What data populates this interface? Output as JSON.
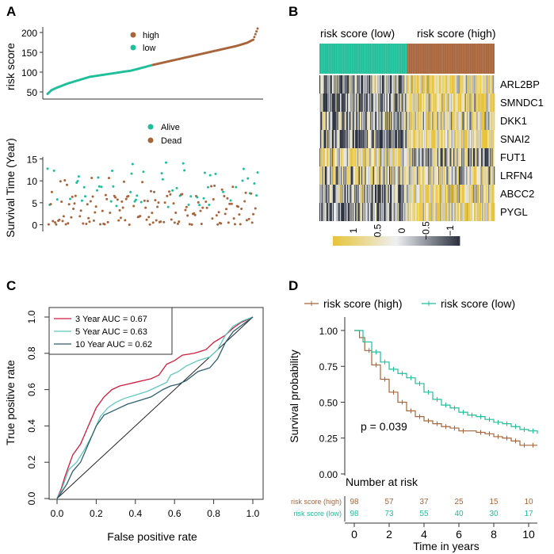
{
  "colors": {
    "high": "#a8643a",
    "low": "#1fbf9a",
    "alive": "#1fbf9a",
    "dead": "#a8643a",
    "roc3": "#d01c3c",
    "roc5": "#5fc8c0",
    "roc10": "#2d5f6e",
    "heat_hi": "#e8c43a",
    "heat_mid": "#eef0f2",
    "heat_lo": "#2d3340"
  },
  "panels": {
    "a": "A",
    "b": "B",
    "c": "C",
    "d": "D"
  },
  "chart_data": [
    {
      "id": "A-top",
      "type": "scatter",
      "ylabel": "risk score",
      "yticks": [
        50,
        100,
        150,
        200
      ],
      "ylim": [
        40,
        210
      ],
      "n": 196,
      "legend": [
        {
          "name": "high"
        },
        {
          "name": "low"
        }
      ],
      "curve": {
        "fraction": [
          0,
          0.02,
          0.05,
          0.1,
          0.2,
          0.3,
          0.4,
          0.5,
          0.6,
          0.7,
          0.8,
          0.9,
          0.95,
          0.98,
          1.0
        ],
        "values": [
          45,
          55,
          62,
          72,
          88,
          96,
          104,
          118,
          130,
          142,
          154,
          166,
          174,
          182,
          210
        ]
      },
      "split_fraction": 0.5
    },
    {
      "id": "A-bottom",
      "type": "scatter",
      "ylabel": "Survival Time (Year)",
      "yticks": [
        0,
        5,
        10,
        15
      ],
      "ylim": [
        -1,
        16
      ],
      "legend": [
        {
          "name": "Alive"
        },
        {
          "name": "Dead"
        }
      ],
      "n": 196
    },
    {
      "id": "B",
      "type": "heatmap",
      "column_groups": [
        "risk score (low)",
        "risk score (high)"
      ],
      "genes": [
        "ARL2BP",
        "SMNDC1",
        "DKK1",
        "SNAI2",
        "FUT1",
        "LRFN4",
        "ABCC2",
        "PYGL"
      ],
      "colorbar_ticks": [
        "1",
        "0.5",
        "0",
        "−0.5",
        "−1"
      ],
      "n_columns": 196
    },
    {
      "id": "C",
      "type": "line",
      "xlabel": "False positive rate",
      "ylabel": "True positive rate",
      "xticks": [
        "0.0",
        "0.2",
        "0.4",
        "0.6",
        "0.8",
        "1.0"
      ],
      "yticks": [
        "0.0",
        "0.2",
        "0.4",
        "0.6",
        "0.8",
        "1.0"
      ],
      "xlim": [
        0,
        1
      ],
      "ylim": [
        0,
        1
      ],
      "legend_position": "top-left",
      "series": [
        {
          "name": "3 Year AUC =  0.67",
          "x": [
            0,
            0.02,
            0.04,
            0.06,
            0.08,
            0.12,
            0.16,
            0.2,
            0.24,
            0.28,
            0.32,
            0.36,
            0.4,
            0.44,
            0.48,
            0.52,
            0.56,
            0.6,
            0.64,
            0.7,
            0.76,
            0.8,
            0.86,
            0.9,
            0.94,
            1.0
          ],
          "y": [
            0,
            0.05,
            0.12,
            0.18,
            0.24,
            0.3,
            0.4,
            0.5,
            0.56,
            0.6,
            0.62,
            0.63,
            0.64,
            0.65,
            0.66,
            0.68,
            0.74,
            0.76,
            0.79,
            0.8,
            0.82,
            0.86,
            0.9,
            0.94,
            0.97,
            1.0
          ]
        },
        {
          "name": "5 Year AUC =  0.63",
          "x": [
            0,
            0.02,
            0.04,
            0.06,
            0.1,
            0.14,
            0.18,
            0.22,
            0.26,
            0.3,
            0.34,
            0.4,
            0.46,
            0.52,
            0.56,
            0.58,
            0.62,
            0.66,
            0.72,
            0.78,
            0.82,
            0.86,
            0.9,
            0.95,
            1.0
          ],
          "y": [
            0,
            0.04,
            0.1,
            0.16,
            0.2,
            0.27,
            0.35,
            0.45,
            0.5,
            0.53,
            0.55,
            0.57,
            0.59,
            0.62,
            0.64,
            0.68,
            0.7,
            0.73,
            0.76,
            0.78,
            0.82,
            0.9,
            0.95,
            0.98,
            1.0
          ]
        },
        {
          "name": "10 Year AUC =  0.62",
          "x": [
            0,
            0.02,
            0.05,
            0.08,
            0.12,
            0.16,
            0.2,
            0.24,
            0.3,
            0.36,
            0.42,
            0.48,
            0.54,
            0.58,
            0.62,
            0.66,
            0.72,
            0.78,
            0.82,
            0.86,
            0.9,
            0.95,
            1.0
          ],
          "y": [
            0,
            0.03,
            0.08,
            0.15,
            0.2,
            0.3,
            0.4,
            0.46,
            0.49,
            0.52,
            0.54,
            0.56,
            0.6,
            0.62,
            0.63,
            0.65,
            0.7,
            0.72,
            0.77,
            0.86,
            0.92,
            0.96,
            1.0
          ]
        }
      ]
    },
    {
      "id": "D",
      "type": "line",
      "xlabel": "Time in years",
      "ylabel": "Survival probability",
      "xticks": [
        "0",
        "2",
        "4",
        "6",
        "8",
        "10"
      ],
      "yticks": [
        "0.00",
        "0.25",
        "0.50",
        "0.75",
        "1.00"
      ],
      "xlim": [
        0,
        10.5
      ],
      "ylim": [
        0,
        1.05
      ],
      "annotation": "p = 0.039",
      "series": [
        {
          "name": "risk score (high)",
          "x": [
            0,
            0.3,
            0.6,
            1.0,
            1.5,
            2.0,
            2.5,
            3.0,
            3.5,
            4.0,
            4.5,
            5.0,
            5.5,
            6.0,
            7.0,
            7.5,
            8.0,
            8.5,
            9.0,
            9.5,
            10.0,
            10.5
          ],
          "y": [
            1.0,
            0.95,
            0.86,
            0.76,
            0.66,
            0.57,
            0.5,
            0.44,
            0.4,
            0.37,
            0.35,
            0.33,
            0.32,
            0.3,
            0.29,
            0.28,
            0.26,
            0.25,
            0.23,
            0.2,
            0.2,
            0.2
          ]
        },
        {
          "name": "risk score (low)",
          "x": [
            0,
            0.5,
            1.0,
            1.5,
            2.0,
            2.5,
            3.0,
            3.5,
            4.0,
            4.5,
            5.0,
            5.5,
            6.0,
            6.5,
            7.0,
            7.5,
            8.0,
            8.5,
            9.0,
            9.5,
            10.0,
            10.5
          ],
          "y": [
            1.0,
            0.92,
            0.85,
            0.78,
            0.73,
            0.7,
            0.67,
            0.63,
            0.57,
            0.52,
            0.48,
            0.46,
            0.43,
            0.41,
            0.4,
            0.38,
            0.36,
            0.35,
            0.33,
            0.31,
            0.3,
            0.28
          ]
        }
      ],
      "risk_table": {
        "title": "Number at risk",
        "rows": [
          {
            "label": "risk score (high)",
            "values": [
              "98",
              "57",
              "37",
              "25",
              "15",
              "10"
            ]
          },
          {
            "label": "risk score (low)",
            "values": [
              "98",
              "73",
              "55",
              "40",
              "30",
              "17"
            ]
          }
        ]
      }
    }
  ]
}
